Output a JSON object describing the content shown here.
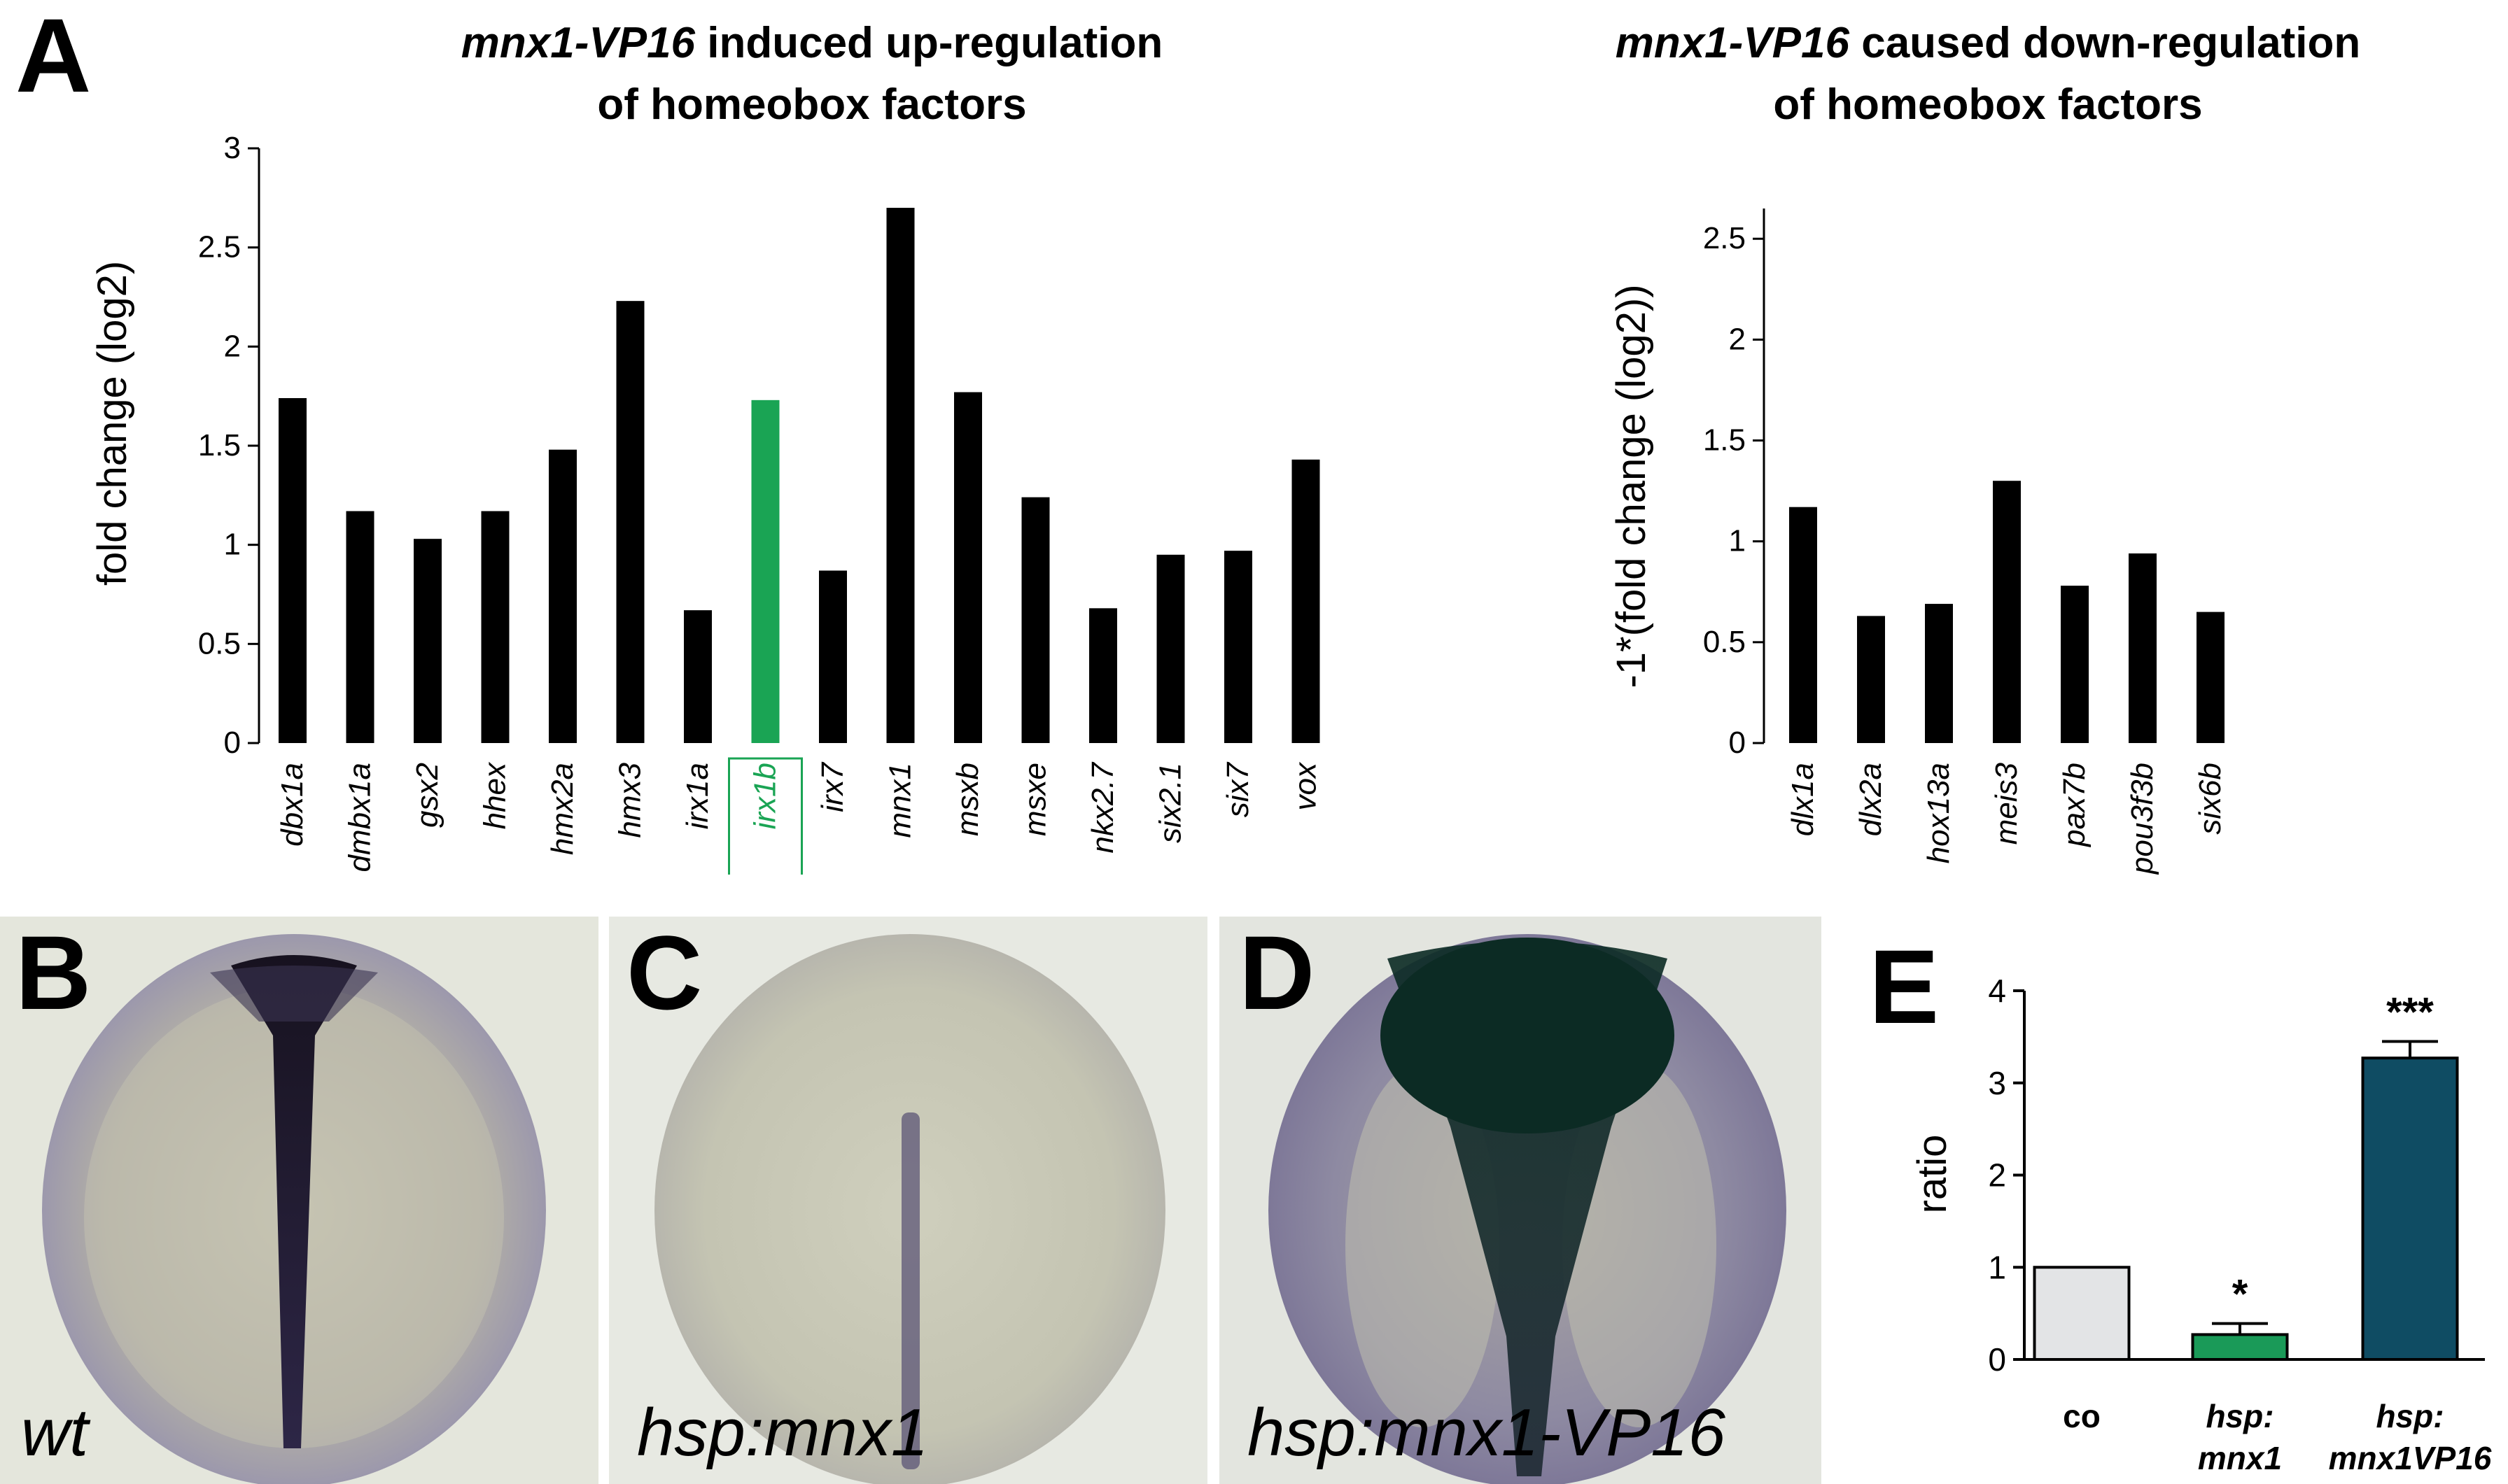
{
  "panels": {
    "A": {
      "letter": "A",
      "up_chart": {
        "type": "bar",
        "title_italic": "mnx1-VP16",
        "title_rest_line1": " induced up-regulation",
        "title_line2": "of homeobox factors",
        "ylabel": "fold change (log2)",
        "ylim": [
          0,
          3
        ],
        "yticks": [
          "0",
          "0.5",
          "1",
          "1.5",
          "2",
          "2.5",
          "3"
        ],
        "categories": [
          "dbx1a",
          "dmbx1a",
          "gsx2",
          "hhex",
          "hmx2a",
          "hmx3",
          "irx1a",
          "irx1b",
          "irx7",
          "mnx1",
          "msxb",
          "msxe",
          "nkx2.7",
          "six2.1",
          "six7",
          "vox"
        ],
        "values": [
          1.74,
          1.17,
          1.03,
          1.17,
          1.48,
          2.23,
          0.67,
          1.73,
          0.87,
          2.7,
          1.77,
          1.24,
          0.68,
          0.95,
          0.97,
          1.43
        ],
        "highlight_category": "irx1b",
        "highlight_color": "#1aa454",
        "bar_color": "#000000"
      },
      "down_chart": {
        "type": "bar",
        "title_italic": "mnx1-VP16",
        "title_rest_line1": " caused down-regulation",
        "title_line2": "of homeobox factors",
        "ylabel": "-1*(fold change (log2))",
        "ylim": [
          0,
          2.65
        ],
        "yticks": [
          "0",
          "0.5",
          "1",
          "1.5",
          "2",
          "2.5"
        ],
        "categories": [
          "dlx1a",
          "dlx2a",
          "hox13a",
          "meis3",
          "pax7b",
          "pou3f3b",
          "six6b"
        ],
        "values": [
          1.17,
          0.63,
          0.69,
          1.3,
          0.78,
          0.94,
          0.65
        ],
        "bar_color": "#000000"
      }
    },
    "B": {
      "letter": "B",
      "label": "wt"
    },
    "C": {
      "letter": "C",
      "label": "hsp:mnx1"
    },
    "D": {
      "letter": "D",
      "label": "hsp:mnx1-VP16"
    },
    "E": {
      "letter": "E",
      "chart": {
        "type": "bar",
        "ylabel": "ratio",
        "ylim": [
          0,
          4
        ],
        "yticks": [
          "0",
          "1",
          "2",
          "3",
          "4"
        ],
        "categories": [
          {
            "line1": "co",
            "line2": ""
          },
          {
            "line1": "hsp:",
            "line2": "mnx1"
          },
          {
            "line1": "hsp:",
            "line2": "mnx1VP16"
          }
        ],
        "values": [
          1.0,
          0.27,
          3.27
        ],
        "errors": [
          0,
          0.12,
          0.18
        ],
        "significance": [
          "",
          "*",
          "***"
        ],
        "bar_colors": [
          "#e3e4e6",
          "#1a9a58",
          "#0f4c63"
        ]
      }
    }
  }
}
